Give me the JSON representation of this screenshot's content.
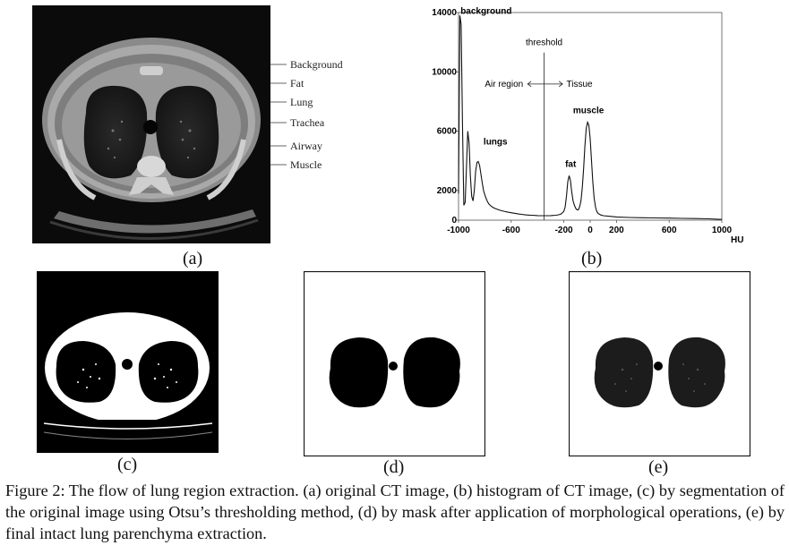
{
  "panels": {
    "a": {
      "label": "(a)",
      "annotations": [
        "Background",
        "Fat",
        "Lung",
        "Trachea",
        "Airway",
        "Muscle"
      ]
    },
    "b": {
      "label": "(b)"
    },
    "c": {
      "label": "(c)"
    },
    "d": {
      "label": "(d)"
    },
    "e": {
      "label": "(e)"
    }
  },
  "chart_data": {
    "type": "line",
    "title": "",
    "xlabel": "HU",
    "ylabel": "",
    "xlim": [
      -1000,
      1000
    ],
    "ylim": [
      0,
      14000
    ],
    "x_ticks": [
      -1000,
      -600,
      -200,
      0,
      200,
      600,
      1000
    ],
    "x_tick_labels": [
      "-1000",
      "-600",
      "-200",
      "0",
      "200",
      "600",
      "1000"
    ],
    "y_ticks": [
      0,
      2000,
      6000,
      10000,
      14000
    ],
    "y_tick_labels": [
      "0",
      "2000",
      "6000",
      "10000",
      "14000"
    ],
    "grid": false,
    "threshold_x": -350,
    "series": [
      {
        "x": [
          -1000,
          -990,
          -980,
          -970,
          -960,
          -950,
          -940,
          -930,
          -920,
          -910,
          -900,
          -890,
          -880,
          -870,
          -860,
          -850,
          -840,
          -830,
          -820,
          -810,
          -800,
          -790,
          -780,
          -770,
          -760,
          -750,
          -740,
          -730,
          -720,
          -700,
          -680,
          -660,
          -640,
          -620,
          -600,
          -580,
          -560,
          -540,
          -520,
          -500,
          -480,
          -460,
          -440,
          -420,
          -400,
          -380,
          -360,
          -340,
          -320,
          -300,
          -280,
          -260,
          -240,
          -220,
          -200,
          -190,
          -180,
          -170,
          -160,
          -150,
          -140,
          -130,
          -120,
          -110,
          -100,
          -90,
          -80,
          -70,
          -60,
          -50,
          -40,
          -30,
          -20,
          -10,
          0,
          10,
          20,
          30,
          40,
          50,
          60,
          80,
          100,
          150,
          200,
          300,
          400,
          500,
          600,
          700,
          800,
          900,
          1000
        ],
        "y": [
          1800,
          13800,
          13200,
          6500,
          1000,
          1200,
          3500,
          6000,
          5200,
          3000,
          1600,
          1300,
          2000,
          3300,
          3900,
          3950,
          3700,
          3100,
          2500,
          2000,
          1700,
          1450,
          1250,
          1100,
          1000,
          930,
          870,
          820,
          780,
          720,
          660,
          610,
          570,
          530,
          500,
          470,
          440,
          410,
          390,
          370,
          350,
          340,
          330,
          320,
          310,
          300,
          300,
          300,
          300,
          310,
          320,
          330,
          360,
          420,
          600,
          900,
          1600,
          2600,
          3000,
          2700,
          1900,
          1300,
          1000,
          800,
          700,
          700,
          900,
          1300,
          2200,
          3500,
          5000,
          6200,
          6600,
          6400,
          5500,
          4000,
          2600,
          1500,
          900,
          600,
          450,
          350,
          300,
          260,
          220,
          180,
          160,
          150,
          140,
          120,
          110,
          90,
          50
        ]
      }
    ],
    "annotations": [
      {
        "text": "background",
        "x": -985,
        "y": 13900
      },
      {
        "text": "lungs",
        "x": -810,
        "y": 5100
      },
      {
        "text": "fat",
        "x": -190,
        "y": 3600
      },
      {
        "text": "muscle",
        "x": -130,
        "y": 7200
      },
      {
        "text": "threshold",
        "x": -350,
        "y": 11800
      },
      {
        "text": "Air region",
        "x": -800,
        "y": 9000
      },
      {
        "text": "Tissue",
        "x": -180,
        "y": 9000
      }
    ]
  },
  "caption": "Figure 2: The flow of lung region extraction. (a) original CT image, (b) histogram of CT image, (c) by segmentation of the original image using Otsu’s thresholding method, (d) by mask after application of morphological operations, (e) by final intact lung parenchyma extraction."
}
